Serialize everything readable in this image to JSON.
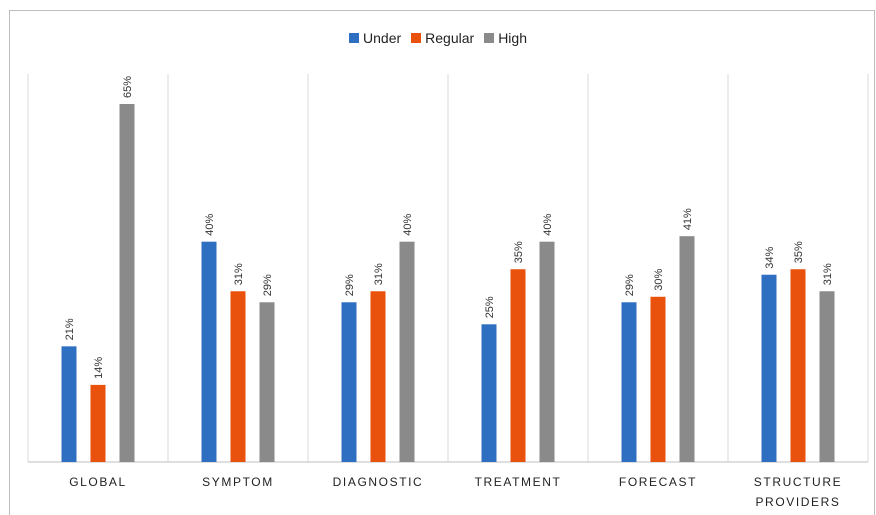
{
  "chart_data": {
    "type": "bar",
    "categories": [
      "GLOBAL",
      "SYMPTOM",
      "DIAGNOSTIC",
      "TREATMENT",
      "FORECAST",
      "STRUCTURE PROVIDERS"
    ],
    "series": [
      {
        "name": "Under",
        "color": "#2f6fc1",
        "values": [
          21,
          40,
          29,
          25,
          29,
          34
        ],
        "labels": [
          "21%",
          "40%",
          "29%",
          "25%",
          "29%",
          "34%"
        ]
      },
      {
        "name": "Regular",
        "color": "#e8520c",
        "values": [
          14,
          31,
          31,
          35,
          30,
          35
        ],
        "labels": [
          "14%",
          "31%",
          "31%",
          "35%",
          "30%",
          "35%"
        ]
      },
      {
        "name": "High",
        "color": "#8a8a8a",
        "values": [
          65,
          29,
          40,
          40,
          41,
          31
        ],
        "labels": [
          "65%",
          "29%",
          "40%",
          "40%",
          "41%",
          "31%"
        ]
      }
    ],
    "ylim": [
      0,
      65
    ],
    "grid": "vertical separators",
    "legend": "top-center"
  }
}
